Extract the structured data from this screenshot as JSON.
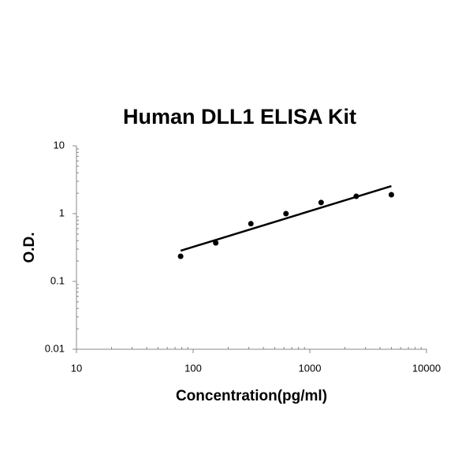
{
  "chart_data": {
    "type": "scatter",
    "title": "Human DLL1 ELISA Kit",
    "x_label": "Concentration(pg/ml)",
    "y_label": "O.D.",
    "x": [
      78.125,
      156.25,
      312.5,
      625,
      1250,
      2500,
      5000
    ],
    "values": [
      0.235,
      0.37,
      0.71,
      1.0,
      1.46,
      1.8,
      1.9
    ],
    "color": "#000000",
    "trendline": {
      "x": [
        78.125,
        5000
      ],
      "values": [
        0.284,
        2.55
      ]
    },
    "x_scale": "log",
    "y_scale": "log",
    "xlim": [
      10,
      10000
    ],
    "xticks": [
      10,
      100,
      1000,
      10000
    ],
    "ylim": [
      0.01,
      10
    ],
    "yticks": [
      0.01,
      0.1,
      1,
      10
    ],
    "grid": false
  }
}
